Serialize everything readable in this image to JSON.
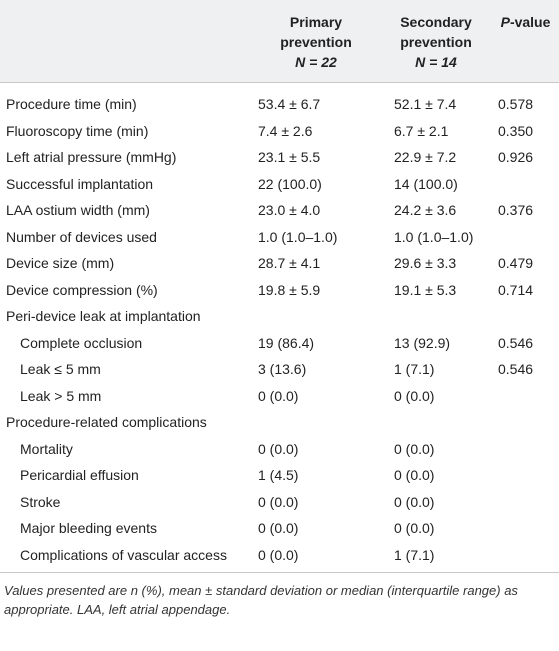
{
  "table": {
    "header": [
      {
        "label": "Primary prevention",
        "n": "N = 22"
      },
      {
        "label": "Secondary prevention",
        "n": "N = 14"
      },
      {
        "italic": "P",
        "label": "-value"
      }
    ],
    "rows": [
      {
        "label": "Procedure time (min)",
        "cells": [
          "53.4 ± 6.7",
          "52.1 ± 7.4",
          "0.578"
        ]
      },
      {
        "label": "Fluoroscopy time (min)",
        "cells": [
          "7.4 ± 2.6",
          "6.7 ± 2.1",
          "0.350"
        ]
      },
      {
        "label": "Left atrial pressure (mmHg)",
        "cells": [
          "23.1 ± 5.5",
          "22.9 ± 7.2",
          "0.926"
        ]
      },
      {
        "label": "Successful implantation",
        "cells": [
          "22 (100.0)",
          "14 (100.0)",
          null
        ]
      },
      {
        "label": "LAA ostium width (mm)",
        "cells": [
          "23.0 ± 4.0",
          "24.2 ± 3.6",
          "0.376"
        ]
      },
      {
        "label": "Number of devices used",
        "cells": [
          "1.0 (1.0–1.0)",
          "1.0 (1.0–1.0)",
          null
        ]
      },
      {
        "label": "Device size (mm)",
        "cells": [
          "28.7 ± 4.1",
          "29.6 ± 3.3",
          "0.479"
        ]
      },
      {
        "label": "Device compression (%)",
        "cells": [
          "19.8 ± 5.9",
          "19.1 ± 5.3",
          "0.714"
        ]
      },
      {
        "label": "Peri-device leak at implantation",
        "cells": [
          null,
          null,
          null
        ]
      },
      {
        "label": "Complete occlusion",
        "indent": true,
        "cells": [
          "19 (86.4)",
          "13 (92.9)",
          "0.546"
        ]
      },
      {
        "label": "Leak ≤ 5 mm",
        "indent": true,
        "cells": [
          "3 (13.6)",
          "1 (7.1)",
          "0.546"
        ]
      },
      {
        "label": "Leak > 5 mm",
        "indent": true,
        "cells": [
          "0 (0.0)",
          "0 (0.0)",
          null
        ]
      },
      {
        "label": "Procedure-related complications",
        "cells": [
          null,
          null,
          null
        ]
      },
      {
        "label": "Mortality",
        "indent": true,
        "cells": [
          "0 (0.0)",
          "0 (0.0)",
          null
        ]
      },
      {
        "label": "Pericardial effusion",
        "indent": true,
        "cells": [
          "1 (4.5)",
          "0 (0.0)",
          null
        ]
      },
      {
        "label": "Stroke",
        "indent": true,
        "cells": [
          "0 (0.0)",
          "0 (0.0)",
          null
        ]
      },
      {
        "label": "Major bleeding events",
        "indent": true,
        "cells": [
          "0 (0.0)",
          "0 (0.0)",
          null
        ]
      },
      {
        "label": "Complications of vascular access",
        "indent": true,
        "cells": [
          "0 (0.0)",
          "1 (7.1)",
          null
        ]
      }
    ],
    "footnote": "Values presented are n (%), mean ± standard deviation or median (interquartile range) as appropriate. LAA, left atrial appendage."
  }
}
